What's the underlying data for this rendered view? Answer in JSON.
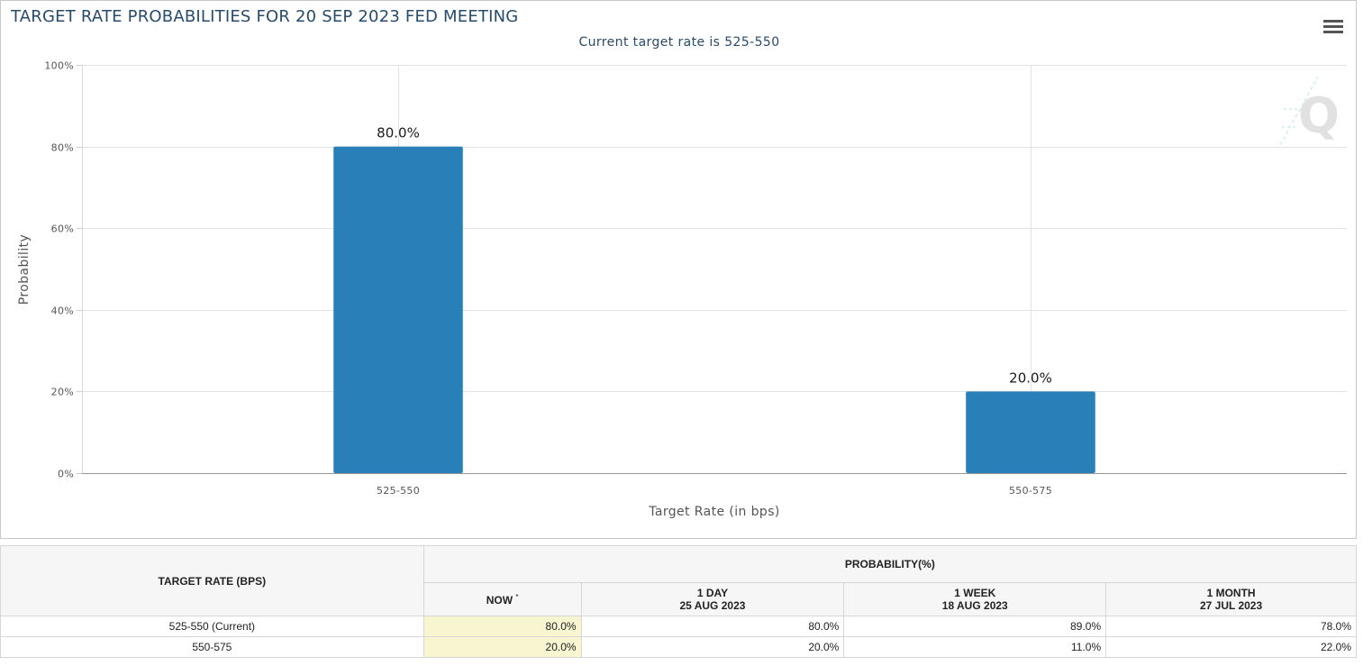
{
  "chart": {
    "title": "TARGET RATE PROBABILITIES FOR 20 SEP 2023 FED MEETING",
    "subtitle": "Current target rate is 525-550",
    "menu_icon": "hamburger-menu-icon",
    "watermark_icon": "cme-q-logo-icon"
  },
  "chart_data": {
    "type": "bar",
    "title": "TARGET RATE PROBABILITIES FOR 20 SEP 2023 FED MEETING",
    "subtitle": "Current target rate is 525-550",
    "categories": [
      "525-550",
      "550-575"
    ],
    "values": [
      80.0,
      20.0
    ],
    "data_labels": [
      "80.0%",
      "20.0%"
    ],
    "xlabel": "Target Rate (in bps)",
    "ylabel": "Probability",
    "ylim": [
      0,
      100
    ],
    "yticks": [
      "0%",
      "20%",
      "40%",
      "60%",
      "80%",
      "100%"
    ],
    "grid": true,
    "bar_color": "#2980b9"
  },
  "table": {
    "target_rate_header": "TARGET RATE (BPS)",
    "probability_header": "PROBABILITY(%)",
    "columns": [
      {
        "label": "NOW",
        "marker": "*",
        "date": ""
      },
      {
        "label": "1 DAY",
        "date": "25 AUG 2023"
      },
      {
        "label": "1 WEEK",
        "date": "18 AUG 2023"
      },
      {
        "label": "1 MONTH",
        "date": "27 JUL 2023"
      }
    ],
    "rows": [
      {
        "rate": "525-550 (Current)",
        "now": "80.0%",
        "day": "80.0%",
        "week": "89.0%",
        "month": "78.0%"
      },
      {
        "rate": "550-575",
        "now": "20.0%",
        "day": "20.0%",
        "week": "11.0%",
        "month": "22.0%"
      }
    ]
  }
}
